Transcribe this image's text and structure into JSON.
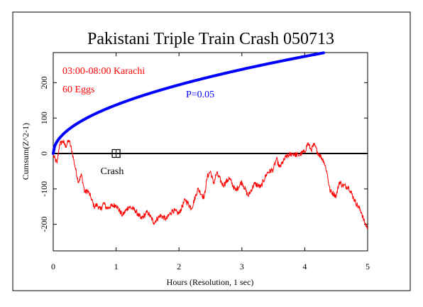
{
  "chart_data": {
    "type": "line",
    "title": "Pakistani Triple Train Crash 050713",
    "xlabel": "Hours (Resolution, 1 sec)",
    "ylabel": "Cumsum(Z^2-1)",
    "xlim": [
      0,
      5
    ],
    "ylim": [
      -275,
      285
    ],
    "x_ticks": [
      0,
      1,
      2,
      3,
      4,
      5
    ],
    "y_ticks": [
      -200,
      -100,
      0,
      100,
      200
    ],
    "grid": false,
    "annotations": {
      "time_window": "03:00-08:00 Karachi",
      "eggs": "60 Eggs",
      "probability": "P=0.05",
      "event_label": "Crash"
    },
    "event_marker": {
      "x": 1.0,
      "y": 0
    },
    "series": [
      {
        "color": "#0000ff",
        "kind": "sqrt-envelope",
        "coef": 137.1,
        "x": [
          0,
          0.25,
          0.5,
          1.0,
          1.5,
          2.0,
          2.5,
          3.0,
          3.5,
          4.0,
          4.3
        ],
        "values": [
          0,
          68.6,
          96.9,
          137.1,
          167.9,
          193.9,
          216.8,
          237.5,
          256.5,
          274.2,
          284.3
        ]
      },
      {
        "color": "#ff0000",
        "kind": "random-walk",
        "x": [
          0,
          0.06,
          0.1,
          0.15,
          0.2,
          0.25,
          0.3,
          0.35,
          0.4,
          0.45,
          0.5,
          0.55,
          0.6,
          0.65,
          0.7,
          0.75,
          0.8,
          0.85,
          0.9,
          1.0,
          1.1,
          1.2,
          1.3,
          1.4,
          1.5,
          1.6,
          1.7,
          1.8,
          1.9,
          2.0,
          2.1,
          2.2,
          2.3,
          2.4,
          2.45,
          2.5,
          2.55,
          2.6,
          2.7,
          2.8,
          2.9,
          3.0,
          3.1,
          3.2,
          3.3,
          3.4,
          3.5,
          3.55,
          3.6,
          3.7,
          3.8,
          3.9,
          4.0,
          4.05,
          4.1,
          4.15,
          4.2,
          4.3,
          4.35,
          4.4,
          4.5,
          4.55,
          4.6,
          4.7,
          4.8,
          4.9,
          4.95,
          5.0
        ],
        "values": [
          -5,
          -28,
          25,
          35,
          20,
          38,
          5,
          -40,
          -80,
          -60,
          -110,
          -105,
          -125,
          -150,
          -145,
          -160,
          -140,
          -155,
          -150,
          -145,
          -175,
          -150,
          -160,
          -185,
          -165,
          -195,
          -175,
          -185,
          -160,
          -170,
          -130,
          -155,
          -100,
          -125,
          -65,
          -50,
          -85,
          -55,
          -90,
          -70,
          -105,
          -80,
          -120,
          -85,
          -95,
          -55,
          -45,
          -15,
          -40,
          -10,
          0,
          -5,
          5,
          30,
          10,
          25,
          5,
          -20,
          -50,
          -105,
          -120,
          -80,
          -90,
          -95,
          -135,
          -165,
          -195,
          -210
        ]
      }
    ]
  }
}
